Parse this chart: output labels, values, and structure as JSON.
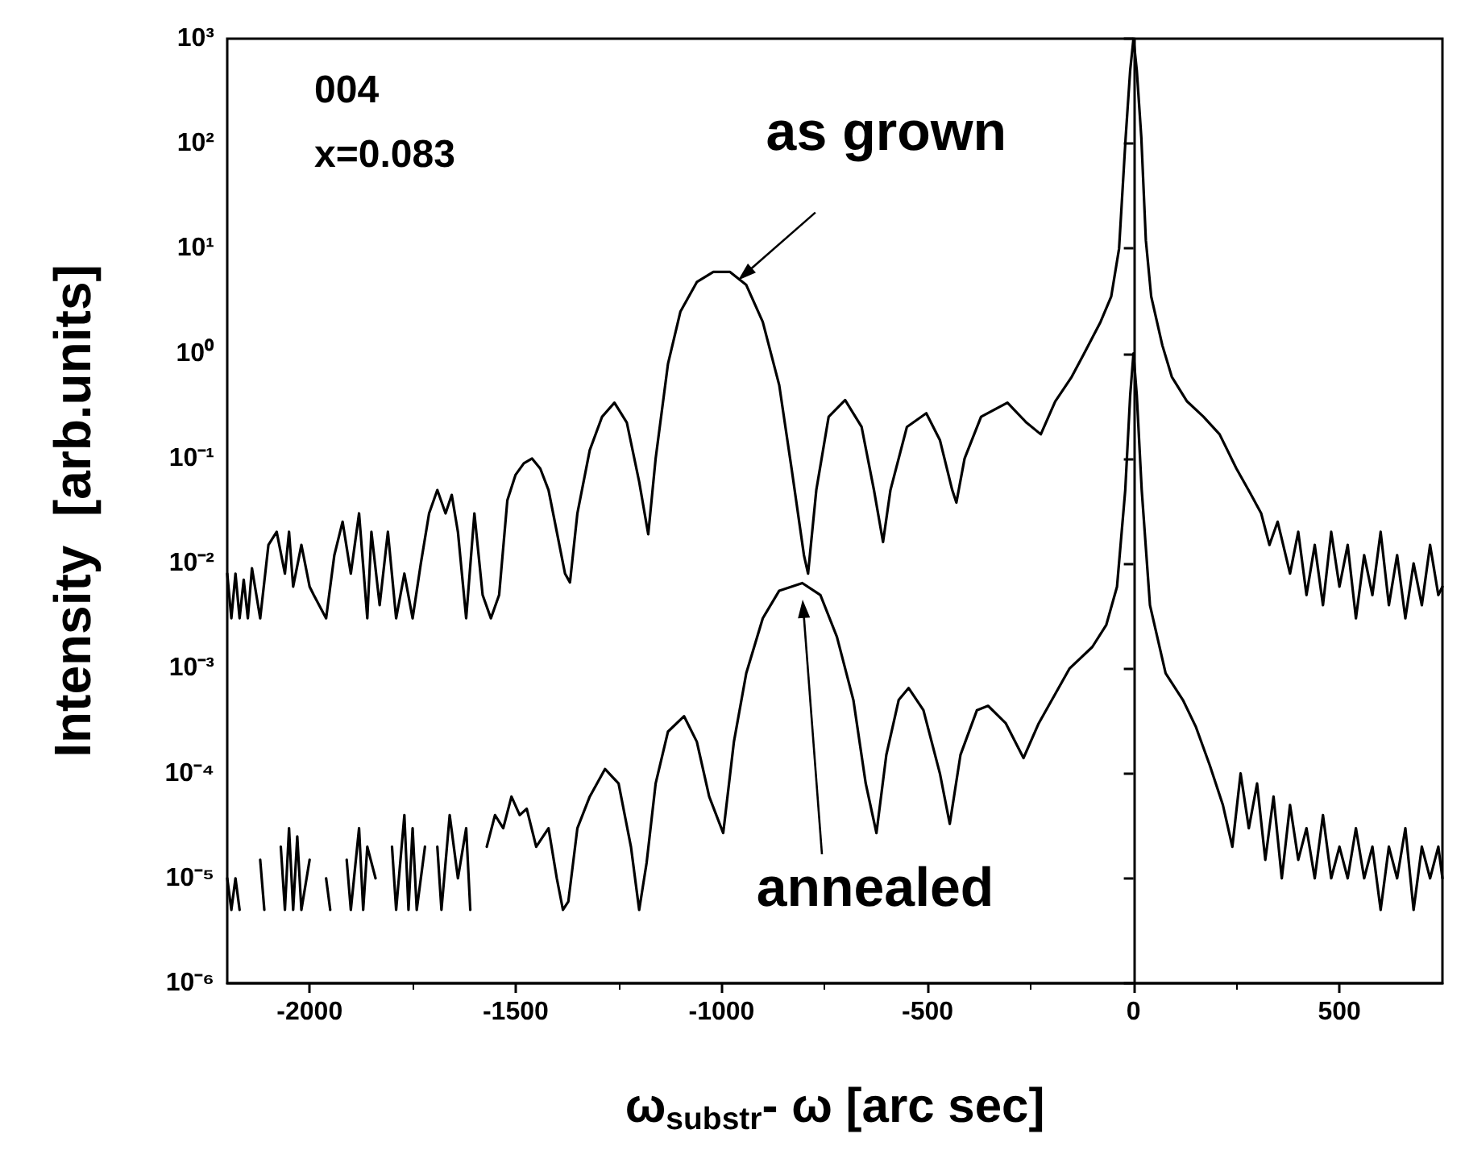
{
  "chart_data": {
    "type": "line",
    "xlabel": "ω$_{substr}$- ω [arc sec]",
    "ylabel": "Intensity  [arb.units]",
    "annotations": [
      "004",
      "x=0.083",
      {
        "text": "as grown",
        "x": -960,
        "y": 5
      },
      "annealed"
    ],
    "xlim": [
      -2200,
      750
    ],
    "xticks": [
      -2000,
      -1500,
      -1000,
      -500,
      0,
      500
    ],
    "ylim": [
      1e-06,
      1000
    ],
    "yticks": [
      {
        "value": 1e-06,
        "label": "10⁻⁶"
      },
      {
        "value": 1e-05,
        "label": "10⁻⁵"
      },
      {
        "value": 0.0001,
        "label": "10⁻⁴"
      },
      {
        "value": 0.001,
        "label": "10⁻³"
      },
      {
        "value": 0.01,
        "label": "10⁻²"
      },
      {
        "value": 0.1,
        "label": "10⁻¹"
      },
      {
        "value": 1,
        "label": "10⁰"
      },
      {
        "value": 10,
        "label": "10¹"
      },
      {
        "value": 100,
        "label": "10²"
      },
      {
        "value": 1000,
        "label": "10³"
      }
    ],
    "log": "y",
    "marker": "none",
    "line_style": "solid",
    "series": [
      {
        "color": "#000000",
        "x": [
          -2200,
          -2190,
          -2180,
          -2170,
          -2160,
          -2150,
          -2140,
          -2120,
          -2100,
          -2080,
          -2060,
          -2050,
          -2040,
          -2020,
          -2000,
          -1990,
          -1960,
          -1940,
          -1920,
          -1900,
          -1880,
          -1860,
          -1850,
          -1830,
          -1810,
          -1790,
          -1770,
          -1750,
          -1730,
          -1710,
          -1690,
          -1670,
          -1655,
          -1640,
          -1620,
          -1600,
          -1580,
          -1560,
          -1540,
          -1520,
          -1500,
          -1480,
          -1460,
          -1440,
          -1420,
          -1400,
          -1380,
          -1368,
          -1350,
          -1320,
          -1290,
          -1260,
          -1230,
          -1200,
          -1178,
          -1160,
          -1130,
          -1100,
          -1060,
          -1020,
          -980,
          -940,
          -900,
          -860,
          -830,
          -800,
          -790,
          -770,
          -740,
          -700,
          -660,
          -630,
          -608,
          -590,
          -550,
          -503,
          -470,
          -440,
          -430,
          -410,
          -370,
          -306,
          -260,
          -225,
          -190,
          -150,
          -120,
          -80,
          -54,
          -35,
          -19,
          -8,
          0,
          8,
          19,
          30,
          43,
          70,
          93,
          130,
          170,
          209,
          250,
          283,
          310,
          330,
          350,
          380,
          400,
          420,
          440,
          460,
          480,
          500,
          520,
          540,
          560,
          580,
          600,
          620,
          640,
          660,
          680,
          700,
          720,
          740,
          750
        ],
        "values": [
          0.008,
          0.003,
          0.008,
          0.003,
          0.007,
          0.003,
          0.009,
          0.003,
          0.015,
          0.02,
          0.008,
          0.02,
          0.006,
          0.015,
          0.006,
          0.005,
          0.003,
          0.012,
          0.025,
          0.008,
          0.03,
          0.003,
          0.02,
          0.004,
          0.02,
          0.003,
          0.008,
          0.003,
          0.01,
          0.03,
          0.05,
          0.03,
          0.045,
          0.02,
          0.003,
          0.03,
          0.005,
          0.003,
          0.005,
          0.04,
          0.07,
          0.09,
          0.1,
          0.08,
          0.05,
          0.02,
          0.008,
          0.0066,
          0.03,
          0.12,
          0.25,
          0.34,
          0.22,
          0.06,
          0.019,
          0.1,
          0.8,
          2.5,
          4.8,
          6,
          6,
          4.5,
          2,
          0.5,
          0.08,
          0.012,
          0.008,
          0.05,
          0.25,
          0.36,
          0.2,
          0.05,
          0.016,
          0.05,
          0.2,
          0.27,
          0.15,
          0.05,
          0.038,
          0.1,
          0.25,
          0.34,
          0.22,
          0.17,
          0.35,
          0.6,
          1,
          2,
          3.5,
          10,
          115,
          500,
          1000,
          500,
          115,
          12,
          3.5,
          1.2,
          0.6,
          0.35,
          0.25,
          0.17,
          0.08,
          0.047,
          0.03,
          0.015,
          0.025,
          0.008,
          0.02,
          0.005,
          0.015,
          0.004,
          0.02,
          0.006,
          0.015,
          0.003,
          0.012,
          0.005,
          0.02,
          0.004,
          0.012,
          0.003,
          0.01,
          0.004,
          0.015,
          0.005,
          0.006
        ]
      },
      {
        "color": "#000000",
        "x": [
          -2200,
          -2190,
          -2180,
          -2170,
          -2140,
          -2120,
          -2110,
          -2090,
          -2070,
          -2060,
          -2050,
          -2040,
          -2030,
          -2020,
          -2000,
          -1990,
          -1960,
          -1950,
          -1930,
          -1910,
          -1900,
          -1880,
          -1870,
          -1860,
          -1840,
          -1830,
          -1800,
          -1790,
          -1770,
          -1760,
          -1750,
          -1740,
          -1720,
          -1710,
          -1690,
          -1680,
          -1660,
          -1640,
          -1620,
          -1610,
          -1590,
          -1570,
          -1550,
          -1530,
          -1510,
          -1490,
          -1473,
          -1450,
          -1420,
          -1400,
          -1385,
          -1372,
          -1350,
          -1320,
          -1283,
          -1250,
          -1220,
          -1200,
          -1182,
          -1160,
          -1130,
          -1091,
          -1060,
          -1030,
          -996,
          -970,
          -940,
          -900,
          -860,
          -804,
          -760,
          -720,
          -680,
          -650,
          -624,
          -600,
          -570,
          -546,
          -510,
          -470,
          -446,
          -420,
          -380,
          -353,
          -310,
          -267,
          -230,
          -155,
          -100,
          -66,
          -40,
          -20,
          -8,
          0,
          8,
          20,
          40,
          78,
          120,
          151,
          185,
          217,
          240,
          260,
          280,
          300,
          320,
          340,
          360,
          380,
          400,
          420,
          440,
          460,
          480,
          500,
          520,
          540,
          560,
          580,
          600,
          620,
          640,
          660,
          680,
          700,
          720,
          740,
          750
        ],
        "values": [
          1e-05,
          5e-06,
          1e-05,
          5e-06,
          null,
          1.5e-05,
          5e-06,
          null,
          2e-05,
          5e-06,
          3e-05,
          5e-06,
          2.5e-05,
          5e-06,
          1.5e-05,
          null,
          1e-05,
          5e-06,
          null,
          1.5e-05,
          5e-06,
          3e-05,
          5e-06,
          2e-05,
          1e-05,
          null,
          2e-05,
          5e-06,
          4e-05,
          5e-06,
          3e-05,
          5e-06,
          2e-05,
          null,
          2e-05,
          5e-06,
          4e-05,
          1e-05,
          3e-05,
          5e-06,
          null,
          2e-05,
          4e-05,
          3e-05,
          6e-05,
          4e-05,
          4.6e-05,
          2e-05,
          3e-05,
          1e-05,
          5e-06,
          6e-06,
          3e-05,
          6e-05,
          0.00011,
          8e-05,
          2e-05,
          5e-06,
          1.4e-05,
          8e-05,
          0.00025,
          0.00035,
          0.0002,
          6e-05,
          2.7e-05,
          0.0002,
          0.0009,
          0.003,
          0.0055,
          0.0065,
          0.005,
          0.002,
          0.0005,
          8e-05,
          2.7e-05,
          0.00015,
          0.0005,
          0.00065,
          0.0004,
          0.0001,
          3.3e-05,
          0.00015,
          0.0004,
          0.00044,
          0.0003,
          0.00014,
          0.0003,
          0.001,
          0.0016,
          0.0026,
          0.006,
          0.05,
          0.4,
          1,
          0.4,
          0.05,
          0.004,
          0.0009,
          0.0005,
          0.00028,
          0.00012,
          5e-05,
          2e-05,
          0.0001,
          3e-05,
          8e-05,
          1.5e-05,
          6e-05,
          1e-05,
          5e-05,
          1.5e-05,
          3e-05,
          1e-05,
          4e-05,
          1e-05,
          2e-05,
          1e-05,
          3e-05,
          1e-05,
          2e-05,
          5e-06,
          2e-05,
          1e-05,
          3e-05,
          5e-06,
          2e-05,
          1e-05,
          2e-05,
          1e-05
        ]
      }
    ]
  }
}
